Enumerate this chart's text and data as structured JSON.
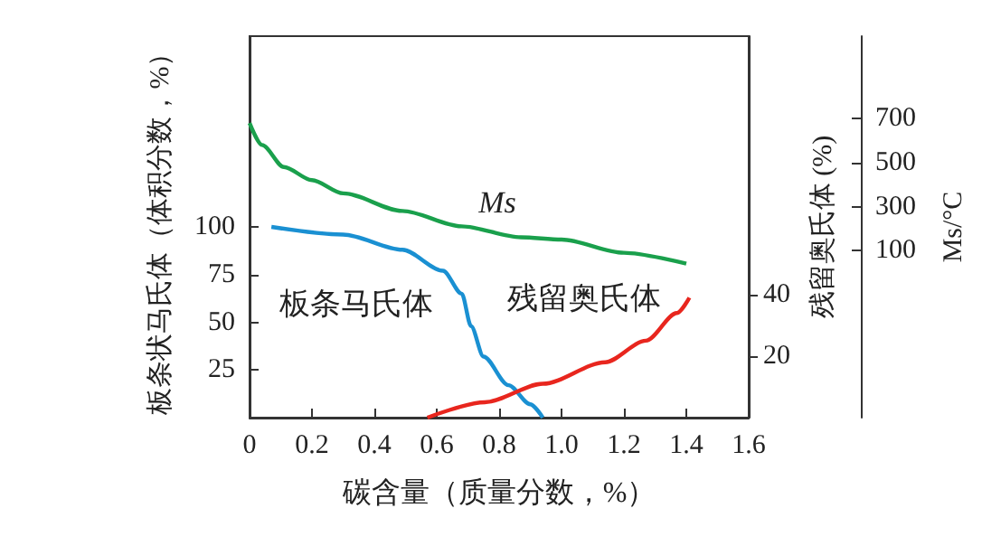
{
  "chart_data": {
    "type": "line",
    "xlabel": "碳含量（质量分数，%）",
    "ylabel": "板条状马氏体（体积分数，%）",
    "y2label": "残留奥氏体 (%)",
    "y3label": "Ms/°C",
    "xlim": [
      0,
      1.6
    ],
    "xticks": [
      0,
      0.2,
      0.4,
      0.6,
      0.8,
      {
        "value": 1,
        "label": "1.0"
      },
      1.2,
      1.4,
      1.6
    ],
    "ylim": [
      0,
      200
    ],
    "yticks": [
      25,
      50,
      75,
      100
    ],
    "y2lim": [
      0,
      124
    ],
    "y2ticks": [
      20,
      40
    ],
    "y3lim": [
      -660,
      1075
    ],
    "y3ticks": [
      100,
      300,
      500,
      700
    ],
    "grid": false,
    "series": [
      {
        "color": "#1aa04c",
        "axis": "y3",
        "x": [
          0,
          0.04,
          0.11,
          0.2,
          0.3,
          0.49,
          0.68,
          0.87,
          1.0,
          1.2,
          1.4
        ],
        "values": [
          680,
          580,
          480,
          420,
          360,
          280,
          210,
          160,
          150,
          90,
          40
        ]
      },
      {
        "color": "#1a90d2",
        "x": [
          0.07,
          0.3,
          0.49,
          0.62,
          0.68,
          0.71,
          0.75,
          0.83,
          0.9,
          0.94
        ],
        "values": [
          100,
          96,
          88,
          77,
          65,
          48,
          32,
          17,
          7,
          0
        ]
      },
      {
        "color": "#e8261e",
        "axis": "y2",
        "x": [
          0.57,
          0.754,
          0.94,
          1.14,
          1.27,
          1.37,
          1.41
        ],
        "values": [
          0,
          5,
          11,
          18,
          25,
          34,
          39
        ]
      }
    ],
    "annotations": [
      "Ms",
      "板条马氏体",
      "残留奥氏体"
    ]
  }
}
